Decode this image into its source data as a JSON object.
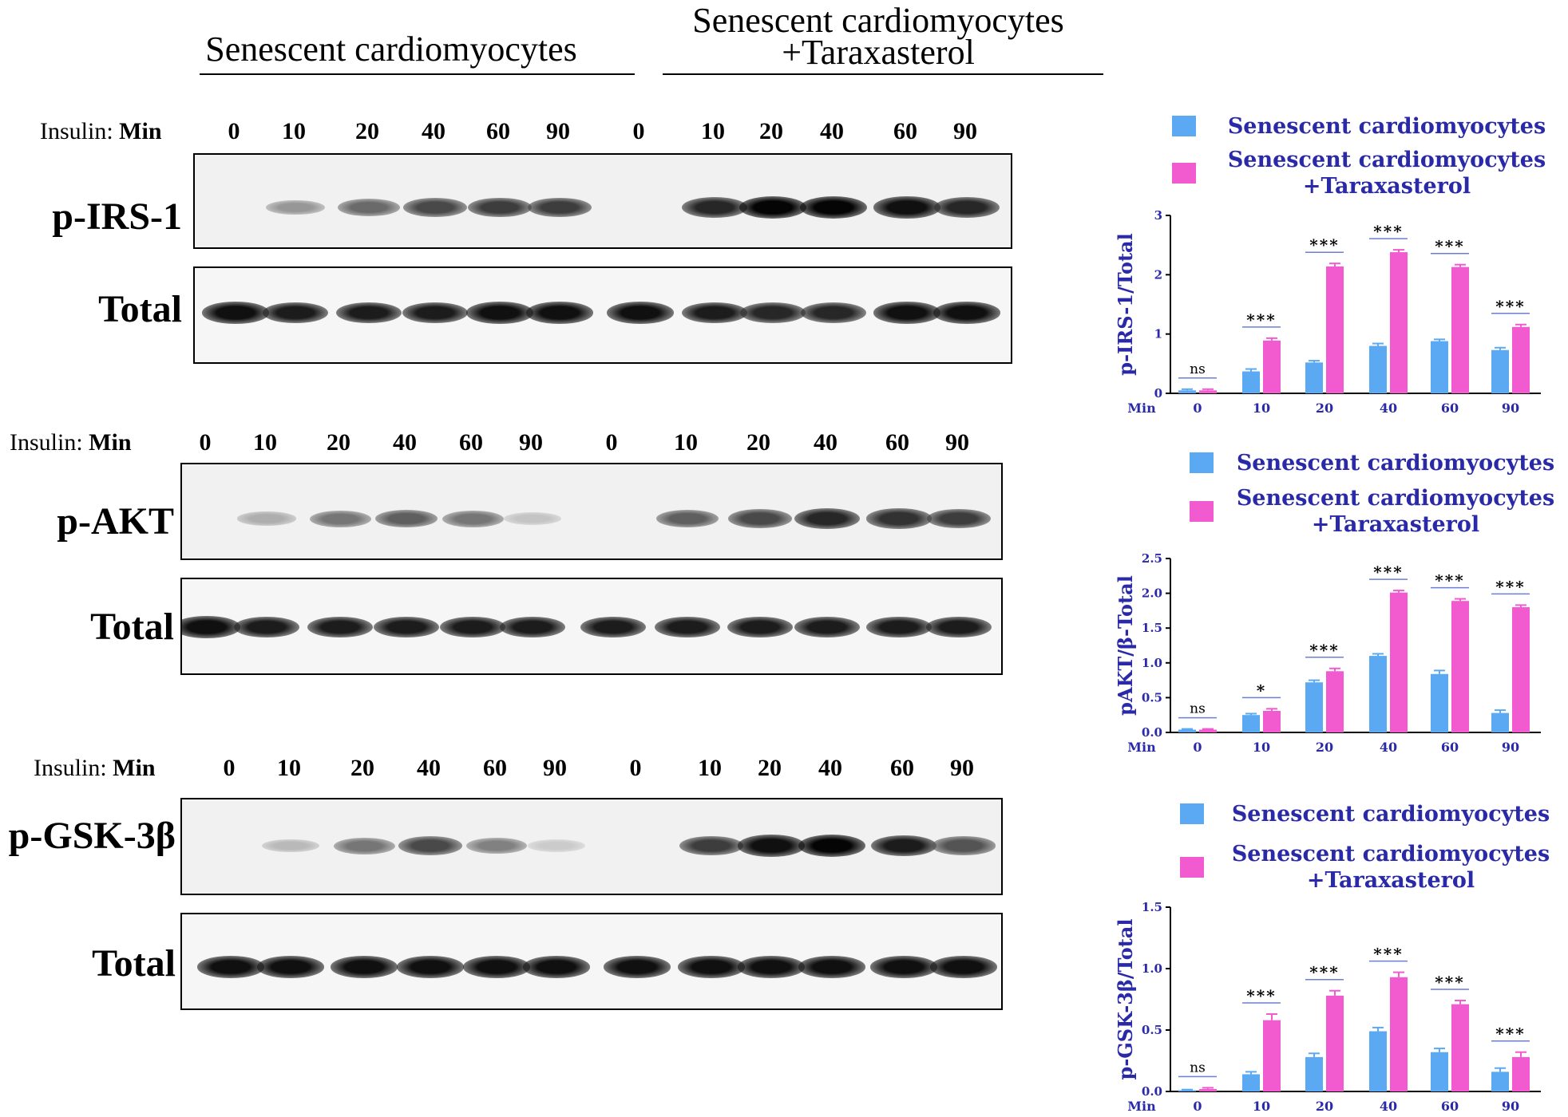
{
  "header": {
    "group1_label": "Senescent cardiomyocytes",
    "group2_label_line1": "Senescent cardiomyocytes",
    "group2_label_line2": "+Taraxasterol"
  },
  "insulin": {
    "label_prefix": "Insulin:",
    "label_unit": "Min",
    "times": [
      "0",
      "10",
      "20",
      "40",
      "60",
      "90",
      "0",
      "10",
      "20",
      "40",
      "60",
      "90"
    ]
  },
  "blots": [
    {
      "phospho_label": "p-IRS-1",
      "total_label": "Total",
      "phospho_intensity": [
        0.02,
        0.35,
        0.55,
        0.7,
        0.75,
        0.75,
        0.02,
        0.85,
        1.0,
        1.0,
        0.95,
        0.85
      ],
      "total_intensity": [
        0.95,
        0.9,
        0.9,
        0.9,
        0.95,
        0.95,
        0.95,
        0.9,
        0.85,
        0.85,
        0.95,
        0.95
      ]
    },
    {
      "phospho_label": "p-AKT",
      "total_label": "Total",
      "phospho_intensity": [
        0.02,
        0.25,
        0.5,
        0.6,
        0.5,
        0.15,
        0.02,
        0.6,
        0.7,
        0.85,
        0.8,
        0.75
      ],
      "total_intensity": [
        0.95,
        0.9,
        0.9,
        0.9,
        0.9,
        0.9,
        0.9,
        0.9,
        0.9,
        0.9,
        0.9,
        0.9
      ]
    },
    {
      "phospho_label": "p-GSK-3β",
      "total_label": "Total",
      "phospho_intensity": [
        0.02,
        0.2,
        0.5,
        0.7,
        0.45,
        0.12,
        0.02,
        0.75,
        0.95,
        1.0,
        0.9,
        0.65
      ],
      "total_intensity": [
        0.95,
        0.95,
        0.95,
        0.95,
        0.95,
        0.95,
        0.95,
        0.95,
        0.95,
        0.95,
        0.95,
        0.95
      ]
    }
  ],
  "colors": {
    "senescent": "#5aa9f2",
    "taraxasterol": "#f25ad0",
    "axis_text": "#2a2aa8",
    "sig_line": "#6b7fd6"
  },
  "chart_data": [
    {
      "type": "bar",
      "categories": [
        "0",
        "10",
        "20",
        "40",
        "60",
        "90"
      ],
      "xprefix": "Min",
      "ylabel": "p-IRS-1/Total",
      "ylim": [
        0,
        3
      ],
      "yticks": [
        "0",
        "1",
        "2",
        "3"
      ],
      "series": [
        {
          "name": "Senescent cardiomyocytes",
          "values": [
            0.05,
            0.37,
            0.52,
            0.8,
            0.88,
            0.73
          ],
          "errors": [
            0.02,
            0.04,
            0.03,
            0.04,
            0.03,
            0.04
          ]
        },
        {
          "name": "Senescent cardiomyocytes +Taraxasterol",
          "values": [
            0.05,
            0.89,
            2.14,
            2.38,
            2.13,
            1.12
          ],
          "errors": [
            0.02,
            0.04,
            0.05,
            0.04,
            0.04,
            0.04
          ]
        }
      ],
      "significance": [
        "ns",
        "***",
        "***",
        "***",
        "***",
        "***"
      ],
      "legend_line1": "Senescent cardiomyocytes",
      "legend_line2a": "Senescent cardiomyocytes",
      "legend_line2b": "+Taraxasterol"
    },
    {
      "type": "bar",
      "categories": [
        "0",
        "10",
        "20",
        "40",
        "60",
        "90"
      ],
      "xprefix": "Min",
      "ylabel": "pAKT/β-Total",
      "ylim": [
        0,
        2.5
      ],
      "yticks": [
        "0.0",
        "0.5",
        "1.0",
        "1.5",
        "2.0",
        "2.5"
      ],
      "series": [
        {
          "name": "Senescent cardiomyocytes",
          "values": [
            0.04,
            0.25,
            0.72,
            1.1,
            0.84,
            0.28
          ],
          "errors": [
            0.01,
            0.02,
            0.03,
            0.03,
            0.05,
            0.04
          ]
        },
        {
          "name": "Senescent cardiomyocytes +Taraxasterol",
          "values": [
            0.04,
            0.31,
            0.88,
            2.01,
            1.89,
            1.8
          ],
          "errors": [
            0.01,
            0.03,
            0.04,
            0.03,
            0.03,
            0.03
          ]
        }
      ],
      "significance": [
        "ns",
        "*",
        "***",
        "***",
        "***",
        "***"
      ],
      "legend_line1": "Senescent cardiomyocytes",
      "legend_line2a": "Senescent cardiomyocytes",
      "legend_line2b": "+Taraxasterol"
    },
    {
      "type": "bar",
      "categories": [
        "0",
        "10",
        "20",
        "40",
        "60",
        "90"
      ],
      "xprefix": "Min",
      "ylabel": "p-GSK-3β/Total",
      "ylim": [
        0,
        1.5
      ],
      "yticks": [
        "0.0",
        "0.5",
        "1.0",
        "1.5"
      ],
      "series": [
        {
          "name": "Senescent cardiomyocytes",
          "values": [
            0.01,
            0.14,
            0.28,
            0.49,
            0.32,
            0.16
          ],
          "errors": [
            0.005,
            0.02,
            0.03,
            0.03,
            0.03,
            0.03
          ]
        },
        {
          "name": "Senescent cardiomyocytes +Taraxasterol",
          "values": [
            0.02,
            0.58,
            0.78,
            0.93,
            0.71,
            0.28
          ],
          "errors": [
            0.01,
            0.05,
            0.04,
            0.04,
            0.03,
            0.04
          ]
        }
      ],
      "significance": [
        "ns",
        "***",
        "***",
        "***",
        "***",
        "***"
      ],
      "legend_line1": "Senescent cardiomyocytes",
      "legend_line2a": "Senescent cardiomyocytes",
      "legend_line2b": "+Taraxasterol"
    }
  ]
}
